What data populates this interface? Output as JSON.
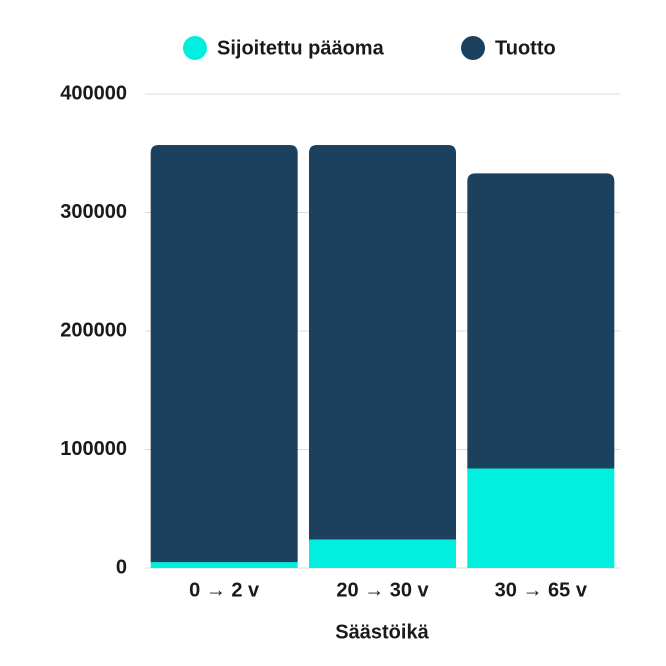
{
  "chart_data": {
    "type": "stacked_bar",
    "categories": [
      "0 → 2 v",
      "20 → 30 v",
      "30 → 65 v"
    ],
    "xlabel": "Säästöikä",
    "series": [
      {
        "name": "Sijoitettu pääoma",
        "color": "#00efdf",
        "values": [
          5000,
          24000,
          84000
        ]
      },
      {
        "name": "Tuotto",
        "color": "#1b415e",
        "values": [
          352000,
          333000,
          249000
        ]
      }
    ],
    "ylim": [
      0,
      400000
    ],
    "yticks": [
      0,
      100000,
      200000,
      300000,
      400000
    ],
    "grid": true,
    "legend": "top"
  }
}
